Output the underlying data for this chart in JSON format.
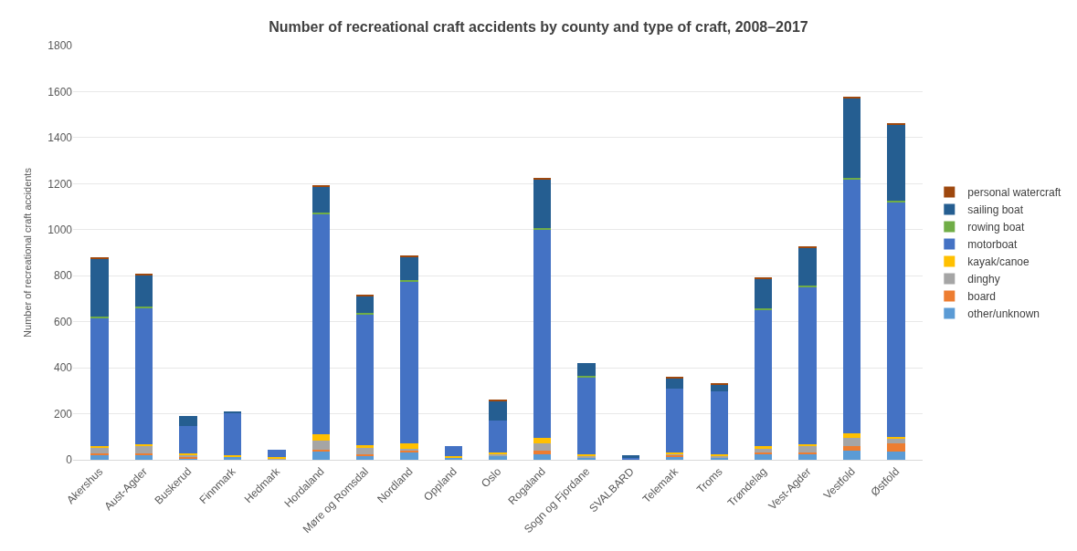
{
  "chart_data": {
    "type": "bar",
    "stacked": true,
    "title": "Number of recreational craft accidents by county and type of craft, 2008–2017",
    "ylabel": "Number of recreational craft accidents",
    "categories": [
      "Akershus",
      "Aust-Agder",
      "Buskerud",
      "Finnmark",
      "Hedmark",
      "Hordaland",
      "Møre og Romsdal",
      "Nordland",
      "Oppland",
      "Oslo",
      "Rogaland",
      "Sogn og Fjordane",
      "SVALBARD",
      "Telemark",
      "Troms",
      "Trøndelag",
      "Vest-Agder",
      "Vestfold",
      "Østfold"
    ],
    "series": [
      {
        "name": "other/unknown",
        "color": "#5b9bd5",
        "values": [
          20,
          22,
          6,
          12,
          0,
          35,
          15,
          32,
          6,
          15,
          25,
          10,
          0,
          10,
          6,
          25,
          25,
          40,
          35
        ]
      },
      {
        "name": "board",
        "color": "#ed7d31",
        "values": [
          8,
          7,
          6,
          0,
          0,
          8,
          10,
          6,
          0,
          0,
          15,
          0,
          0,
          8,
          0,
          6,
          8,
          20,
          35
        ]
      },
      {
        "name": "dinghy",
        "color": "#a5a5a5",
        "values": [
          22,
          30,
          8,
          0,
          6,
          40,
          25,
          10,
          0,
          8,
          30,
          6,
          0,
          8,
          8,
          15,
          25,
          35,
          25
        ]
      },
      {
        "name": "kayak/canoe",
        "color": "#ffc000",
        "values": [
          10,
          10,
          6,
          8,
          6,
          28,
          12,
          22,
          8,
          8,
          25,
          8,
          0,
          7,
          8,
          12,
          8,
          20,
          6
        ]
      },
      {
        "name": "motorboat",
        "color": "#4472c4",
        "values": [
          555,
          593,
          120,
          184,
          33,
          955,
          570,
          705,
          44,
          140,
          905,
          334,
          8,
          275,
          274,
          595,
          685,
          1105,
          1020
        ]
      },
      {
        "name": "rowing boat",
        "color": "#70ad47",
        "values": [
          6,
          6,
          0,
          0,
          0,
          8,
          6,
          6,
          0,
          0,
          6,
          6,
          0,
          0,
          0,
          6,
          6,
          6,
          6
        ]
      },
      {
        "name": "sailing boat",
        "color": "#255e91",
        "values": [
          255,
          133,
          45,
          8,
          0,
          115,
          74,
          100,
          0,
          86,
          213,
          58,
          12,
          45,
          30,
          128,
          165,
          345,
          330
        ]
      },
      {
        "name": "personal watercraft",
        "color": "#9e480e",
        "values": [
          4,
          4,
          0,
          0,
          0,
          4,
          4,
          4,
          0,
          4,
          4,
          0,
          0,
          4,
          4,
          4,
          4,
          4,
          4
        ]
      }
    ],
    "ylim": [
      0,
      1800
    ],
    "yticks": [
      0,
      200,
      400,
      600,
      800,
      1000,
      1200,
      1400,
      1600,
      1800
    ],
    "grid": "y",
    "legend": "right"
  }
}
